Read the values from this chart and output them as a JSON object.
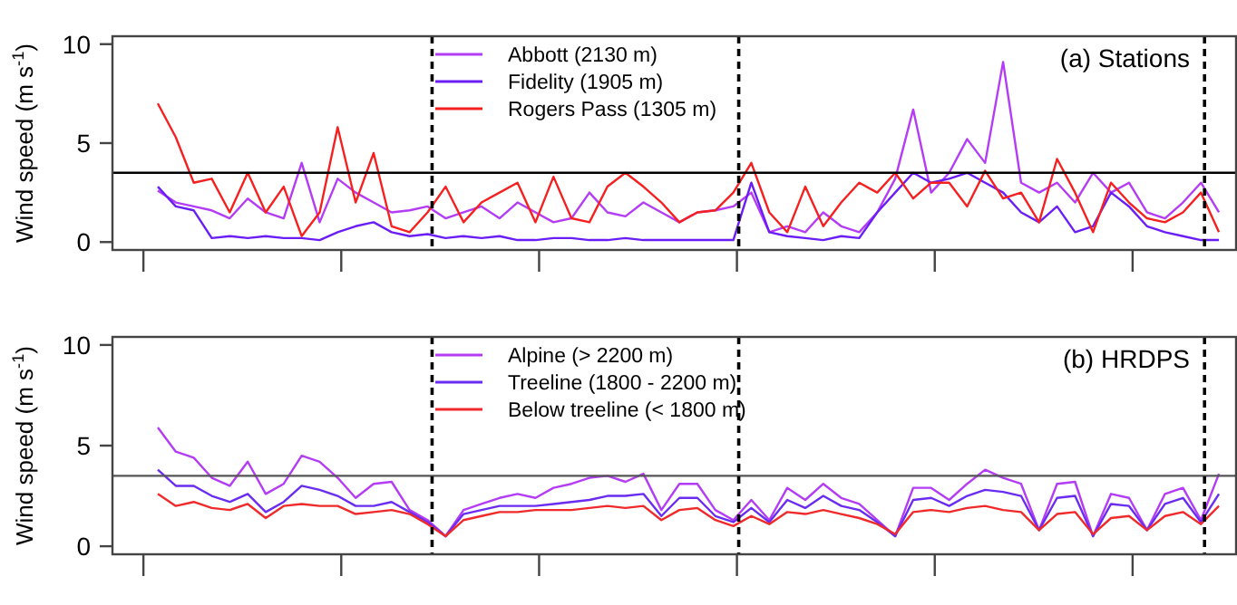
{
  "chart_data": [
    {
      "type": "line",
      "title": "(a) Stations",
      "ylabel": "Wind speed (m s$^{-1}$)",
      "legend": "top",
      "grid": false,
      "line_style": "solid",
      "ylim": [
        -0.4,
        10.4
      ],
      "yticks": [
        0,
        5,
        10
      ],
      "ref_lines": [
        {
          "axis": "y",
          "value": 3.5,
          "line_style": "solid",
          "color": "#000000"
        }
      ],
      "categories": [
        null,
        null,
        null,
        null,
        null,
        null,
        null,
        null,
        null,
        null,
        null,
        null,
        null,
        null,
        null,
        null,
        null,
        null,
        null,
        null,
        null,
        null,
        null,
        null,
        null,
        null,
        null,
        null,
        null,
        null,
        null,
        null,
        null,
        null,
        null,
        null,
        null,
        null,
        null,
        null,
        null,
        null,
        null,
        null,
        null,
        null,
        null,
        null,
        null,
        null,
        null,
        null,
        null,
        null,
        null,
        null,
        null,
        null,
        null,
        null
      ],
      "series": [
        {
          "name": "Abbott (2130 m)",
          "color": "#b43cf5",
          "values": [
            2.6,
            2.0,
            1.8,
            1.6,
            1.2,
            2.2,
            1.5,
            1.2,
            4.0,
            1.0,
            3.2,
            2.5,
            2.0,
            1.5,
            1.6,
            1.8,
            1.2,
            1.5,
            1.8,
            1.2,
            2.0,
            1.5,
            1.0,
            1.2,
            2.5,
            1.5,
            1.3,
            2.0,
            1.5,
            1.0,
            1.5,
            1.6,
            1.8,
            2.5,
            0.5,
            0.8,
            0.5,
            1.5,
            0.8,
            0.5,
            1.5,
            3.2,
            6.7,
            2.5,
            3.5,
            5.2,
            4.0,
            9.1,
            3.0,
            2.5,
            3.0,
            2.0,
            3.5,
            2.5,
            3.0,
            1.5,
            1.2,
            2.0,
            3.0,
            1.5
          ]
        },
        {
          "name": "Fidelity (1905 m)",
          "color": "#6a1ef5",
          "values": [
            2.8,
            1.8,
            1.6,
            0.2,
            0.3,
            0.2,
            0.3,
            0.2,
            0.2,
            0.1,
            0.5,
            0.8,
            1.0,
            0.5,
            0.3,
            0.4,
            0.2,
            0.3,
            0.2,
            0.3,
            0.1,
            0.1,
            0.2,
            0.2,
            0.1,
            0.1,
            0.2,
            0.1,
            0.1,
            0.1,
            0.1,
            0.1,
            0.1,
            3.0,
            0.5,
            0.3,
            0.2,
            0.1,
            0.3,
            0.2,
            1.5,
            2.5,
            3.5,
            3.0,
            3.2,
            3.5,
            3.0,
            2.5,
            1.5,
            1.0,
            1.8,
            0.5,
            0.8,
            2.5,
            1.8,
            0.8,
            0.5,
            0.3,
            0.1,
            0.1
          ]
        },
        {
          "name": "Rogers Pass (1305 m)",
          "color": "#f52020",
          "values": [
            7.0,
            5.3,
            3.0,
            3.2,
            1.5,
            3.5,
            1.5,
            2.8,
            0.3,
            1.5,
            5.8,
            2.0,
            4.5,
            0.8,
            0.5,
            1.5,
            2.8,
            1.0,
            2.0,
            2.5,
            3.0,
            1.0,
            3.3,
            1.2,
            1.0,
            2.8,
            3.5,
            2.8,
            2.0,
            1.0,
            1.5,
            1.6,
            2.5,
            4.0,
            1.5,
            0.5,
            2.8,
            0.8,
            2.0,
            3.0,
            2.5,
            3.5,
            2.2,
            3.0,
            3.0,
            1.8,
            3.6,
            2.2,
            2.5,
            1.0,
            4.2,
            2.5,
            0.5,
            3.0,
            2.0,
            1.2,
            1.0,
            1.5,
            2.5,
            0.5
          ]
        }
      ]
    },
    {
      "type": "line",
      "title": "(b) HRDPS",
      "ylabel": "Wind speed (m s$^{-1}$)",
      "legend": "top",
      "grid": false,
      "line_style": "solid",
      "ylim": [
        -0.4,
        10.4
      ],
      "yticks": [
        0,
        5,
        10
      ],
      "ref_lines": [
        {
          "axis": "y",
          "value": 3.5,
          "line_style": "solid",
          "color": "#555555"
        }
      ],
      "categories": [
        null,
        null,
        null,
        null,
        null,
        null,
        null,
        null,
        null,
        null,
        null,
        null,
        null,
        null,
        null,
        null,
        null,
        null,
        null,
        null,
        null,
        null,
        null,
        null,
        null,
        null,
        null,
        null,
        null,
        null,
        null,
        null,
        null,
        null,
        null,
        null,
        null,
        null,
        null,
        null,
        null,
        null,
        null,
        null,
        null,
        null,
        null,
        null,
        null,
        null,
        null,
        null,
        null,
        null,
        null,
        null,
        null,
        null,
        null,
        null
      ],
      "series": [
        {
          "name": "Alpine (> 2200 m)",
          "color": "#b43cf5",
          "values": [
            5.9,
            4.7,
            4.4,
            3.4,
            3.0,
            4.2,
            2.6,
            3.1,
            4.5,
            4.2,
            3.4,
            2.4,
            3.1,
            3.2,
            1.8,
            1.3,
            0.5,
            1.8,
            2.1,
            2.4,
            2.6,
            2.4,
            2.9,
            3.1,
            3.4,
            3.5,
            3.2,
            3.6,
            1.8,
            3.1,
            3.1,
            1.8,
            1.3,
            2.3,
            1.3,
            2.9,
            2.3,
            3.1,
            2.4,
            2.1,
            1.3,
            0.5,
            2.9,
            2.9,
            2.3,
            3.1,
            3.8,
            3.4,
            3.1,
            0.8,
            3.1,
            3.2,
            0.5,
            2.6,
            2.4,
            0.8,
            2.6,
            2.9,
            1.3,
            3.6
          ]
        },
        {
          "name": "Treeline (1800 - 2200 m)",
          "color": "#6a2cf0",
          "values": [
            3.8,
            3.0,
            3.0,
            2.5,
            2.2,
            2.6,
            1.7,
            2.2,
            3.0,
            2.8,
            2.5,
            2.0,
            2.0,
            2.2,
            1.7,
            1.2,
            0.5,
            1.6,
            1.8,
            2.0,
            2.0,
            2.0,
            2.1,
            2.2,
            2.3,
            2.5,
            2.5,
            2.6,
            1.5,
            2.4,
            2.4,
            1.5,
            1.2,
            1.9,
            1.2,
            2.3,
            1.9,
            2.5,
            2.0,
            1.8,
            1.2,
            0.5,
            2.3,
            2.4,
            2.0,
            2.5,
            2.8,
            2.7,
            2.5,
            0.8,
            2.4,
            2.5,
            0.5,
            2.1,
            2.0,
            0.8,
            2.1,
            2.4,
            1.2,
            2.6
          ]
        },
        {
          "name": "Below treeline (< 1800 m)",
          "color": "#f02a2a",
          "values": [
            2.6,
            2.0,
            2.2,
            1.9,
            1.8,
            2.1,
            1.4,
            2.0,
            2.1,
            2.0,
            2.0,
            1.6,
            1.7,
            1.8,
            1.6,
            1.1,
            0.5,
            1.3,
            1.5,
            1.7,
            1.7,
            1.8,
            1.8,
            1.8,
            1.9,
            2.0,
            1.9,
            2.0,
            1.3,
            1.8,
            1.9,
            1.3,
            1.0,
            1.5,
            1.1,
            1.7,
            1.6,
            1.8,
            1.6,
            1.4,
            1.1,
            0.6,
            1.7,
            1.8,
            1.7,
            1.9,
            2.0,
            1.8,
            1.7,
            0.8,
            1.6,
            1.7,
            0.6,
            1.4,
            1.5,
            0.8,
            1.5,
            1.7,
            1.1,
            2.0
          ]
        }
      ]
    }
  ]
}
